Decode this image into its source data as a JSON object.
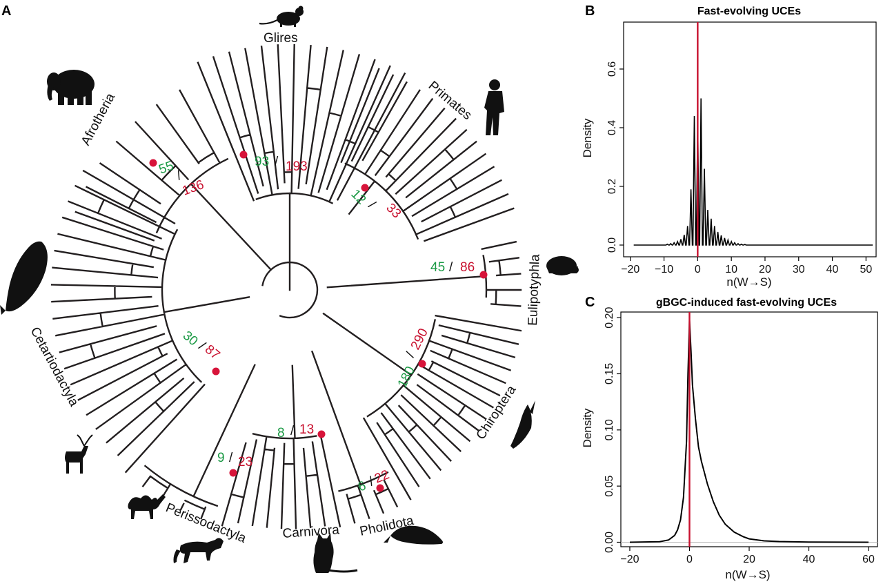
{
  "panels": {
    "a": "A",
    "b": "B",
    "c": "C"
  },
  "tree": {
    "clades": [
      {
        "id": "glires",
        "label": "Glires"
      },
      {
        "id": "primates",
        "label": "Primates"
      },
      {
        "id": "afrotheria",
        "label": "Afrotheria"
      },
      {
        "id": "eulipotyphla",
        "label": "Eulipotyphla"
      },
      {
        "id": "chiroptera",
        "label": "Chiroptera"
      },
      {
        "id": "pholidota",
        "label": "Pholidota"
      },
      {
        "id": "carnivora",
        "label": "Carnivora"
      },
      {
        "id": "perissodactyla",
        "label": "Perissodactyla"
      },
      {
        "id": "cetartiodactyla",
        "label": "Cetartiodactyla"
      }
    ],
    "node_counts": [
      {
        "id": "afrotheria",
        "green": "55",
        "sep": "/",
        "red": "136"
      },
      {
        "id": "glires",
        "green": "93",
        "sep": "/",
        "red": "193"
      },
      {
        "id": "primates",
        "green": "12",
        "sep": "/",
        "red": "33"
      },
      {
        "id": "eulipotyphla",
        "green": "45",
        "sep": "/",
        "red": "86"
      },
      {
        "id": "chiroptera",
        "green": "180",
        "sep": "/",
        "red": "290"
      },
      {
        "id": "cetartiodactyla",
        "green": "30",
        "sep": "/",
        "red": "87"
      },
      {
        "id": "perissodactyla",
        "green": "9",
        "sep": "/",
        "red": "23"
      },
      {
        "id": "carnivora",
        "green": "8",
        "sep": "/",
        "red": "13"
      },
      {
        "id": "pholidota",
        "green": "6",
        "sep": "/",
        "red": "22"
      }
    ],
    "colors": {
      "green": "#1b9a45",
      "red": "#c8102e",
      "branch": "#231f20",
      "node": "#d7143a"
    },
    "silhouettes": [
      "mouse-icon",
      "elephant-icon",
      "human-icon",
      "hedgehog-icon",
      "bat-icon",
      "pangolin-icon",
      "cat-icon",
      "horse-icon",
      "camel-icon",
      "deer-icon",
      "whale-icon"
    ]
  },
  "chart_data": [
    {
      "type": "line",
      "panel": "B",
      "title": "Fast-evolving UCEs",
      "xlabel": "n(W→S)",
      "ylabel": "Density",
      "xlim": [
        -22,
        53
      ],
      "ylim": [
        -0.04,
        0.76
      ],
      "xticks": [
        -20,
        -10,
        0,
        10,
        20,
        30,
        40,
        50
      ],
      "xtick_labels": [
        "−20",
        "−10",
        "0",
        "10",
        "20",
        "30",
        "40",
        "50"
      ],
      "yticks": [
        0.0,
        0.2,
        0.4,
        0.6
      ],
      "ytick_labels": [
        "0.0",
        "0.2",
        "0.4",
        "0.6"
      ],
      "vline_x": 0,
      "vline_color": "#c8102e",
      "series": [
        {
          "color": "#000000",
          "peaks": [
            {
              "x": -9,
              "y": 0.003
            },
            {
              "x": -8,
              "y": 0.005
            },
            {
              "x": -7,
              "y": 0.008
            },
            {
              "x": -6,
              "y": 0.012
            },
            {
              "x": -5,
              "y": 0.02
            },
            {
              "x": -4,
              "y": 0.035
            },
            {
              "x": -3,
              "y": 0.065
            },
            {
              "x": -2,
              "y": 0.19
            },
            {
              "x": -1,
              "y": 0.44
            },
            {
              "x": 0,
              "y": 0.42
            },
            {
              "x": 1,
              "y": 0.5
            },
            {
              "x": 2,
              "y": 0.26
            },
            {
              "x": 3,
              "y": 0.12
            },
            {
              "x": 4,
              "y": 0.09
            },
            {
              "x": 5,
              "y": 0.065
            },
            {
              "x": 6,
              "y": 0.045
            },
            {
              "x": 7,
              "y": 0.033
            },
            {
              "x": 8,
              "y": 0.024
            },
            {
              "x": 9,
              "y": 0.017
            },
            {
              "x": 10,
              "y": 0.012
            },
            {
              "x": 11,
              "y": 0.008
            },
            {
              "x": 12,
              "y": 0.005
            },
            {
              "x": 13,
              "y": 0.003
            },
            {
              "x": 14,
              "y": 0.002
            }
          ],
          "baseline": 0.0
        }
      ]
    },
    {
      "type": "line",
      "panel": "C",
      "title": "gBGC-induced fast-evolving UCEs",
      "xlabel": "n(W→S)",
      "ylabel": "Density",
      "xlim": [
        -23,
        63
      ],
      "ylim": [
        -0.004,
        0.205
      ],
      "xticks": [
        -20,
        0,
        20,
        40,
        60
      ],
      "xtick_labels": [
        "−20",
        "0",
        "20",
        "40",
        "60"
      ],
      "yticks": [
        0.0,
        0.05,
        0.1,
        0.15,
        0.2
      ],
      "ytick_labels": [
        "0.00",
        "0.05",
        "0.10",
        "0.15",
        "0.20"
      ],
      "vline_x": 0,
      "vline_color": "#c8102e",
      "hline_y": 0,
      "series": [
        {
          "color": "#000000",
          "x": [
            -20,
            -10,
            -7,
            -5,
            -4,
            -3,
            -2,
            -1,
            -0.5,
            0,
            0.5,
            1,
            2,
            3,
            4,
            5,
            6,
            8,
            10,
            12,
            15,
            18,
            20,
            25,
            30,
            40,
            60
          ],
          "y": [
            0.0,
            0.0005,
            0.002,
            0.006,
            0.011,
            0.02,
            0.04,
            0.09,
            0.15,
            0.198,
            0.17,
            0.14,
            0.11,
            0.085,
            0.072,
            0.062,
            0.052,
            0.036,
            0.024,
            0.016,
            0.009,
            0.005,
            0.003,
            0.0012,
            0.0006,
            0.0002,
            0.0
          ]
        }
      ]
    }
  ]
}
